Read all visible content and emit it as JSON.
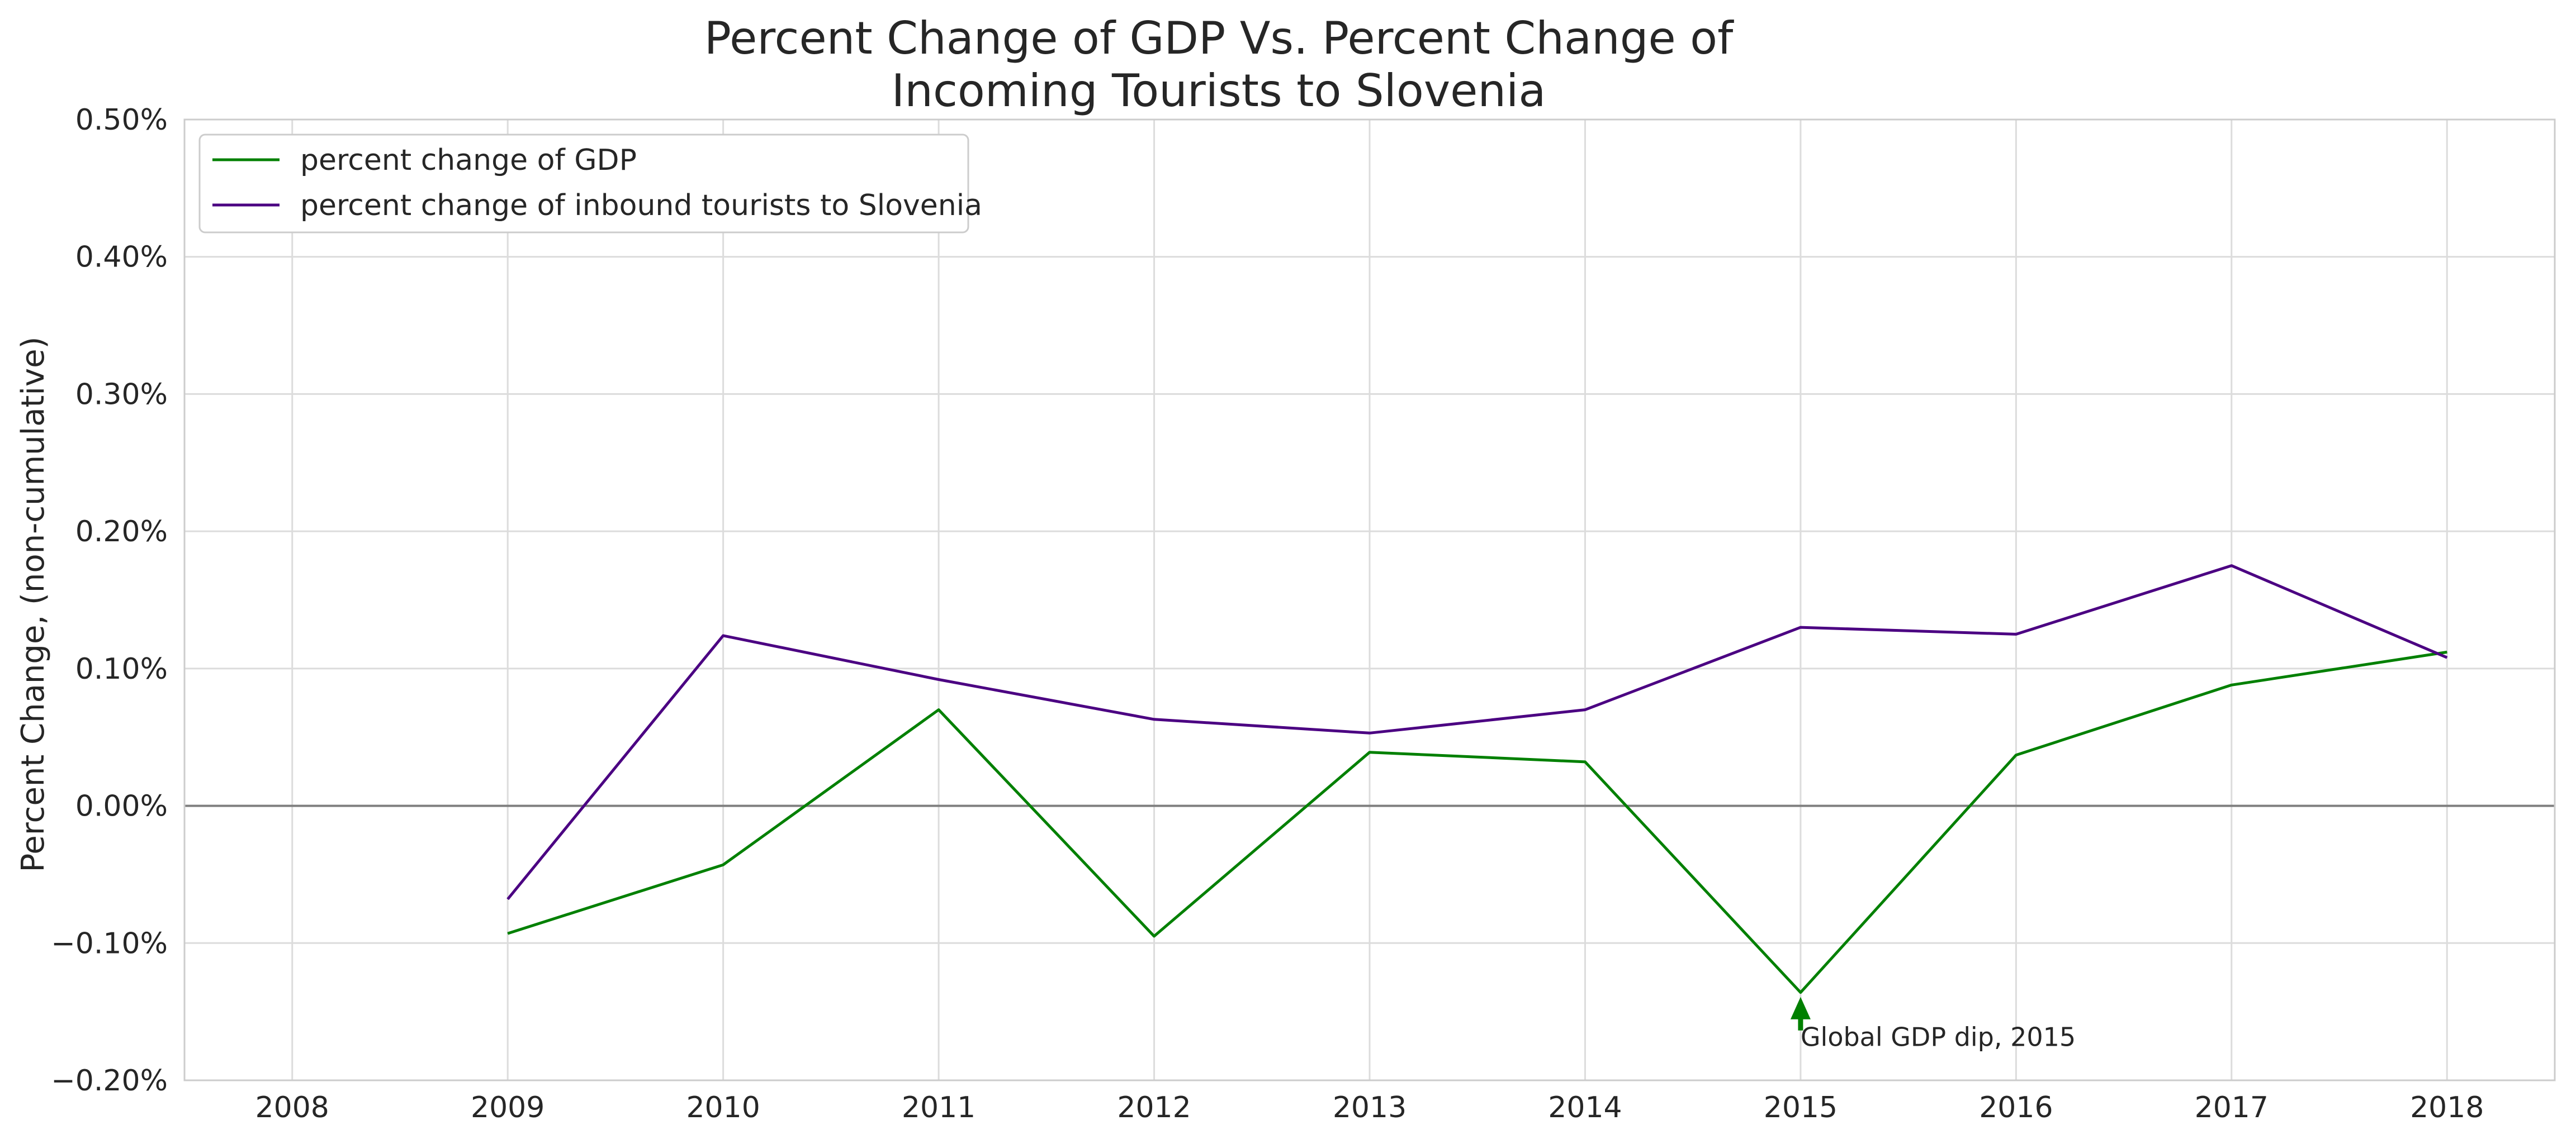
{
  "chart_data": {
    "type": "line",
    "title_lines": [
      "Percent Change of GDP Vs. Percent Change of",
      "Incoming Tourists to Slovenia"
    ],
    "xlabel": "",
    "ylabel": "Percent Change, (non-cumulative)",
    "x": [
      2008,
      2009,
      2010,
      2011,
      2012,
      2013,
      2014,
      2015,
      2016,
      2017,
      2018
    ],
    "xlim": [
      2007.5,
      2018.5
    ],
    "ylim": [
      -0.2,
      0.5
    ],
    "yticks": [
      -0.2,
      -0.1,
      0.0,
      0.1,
      0.2,
      0.3,
      0.4,
      0.5
    ],
    "ytick_labels": [
      "−0.20%",
      "−0.10%",
      "0.00%",
      "0.10%",
      "0.20%",
      "0.30%",
      "0.40%",
      "0.50%"
    ],
    "xtick_labels": [
      "2008",
      "2009",
      "2010",
      "2011",
      "2012",
      "2013",
      "2014",
      "2015",
      "2016",
      "2017",
      "2018"
    ],
    "grid": true,
    "zero_line": true,
    "legend_placement": "top-left",
    "series": [
      {
        "name": "percent change of GDP",
        "color": "#008000",
        "values": [
          null,
          -0.093,
          -0.043,
          0.07,
          -0.095,
          0.039,
          0.032,
          -0.136,
          0.037,
          0.088,
          0.112
        ]
      },
      {
        "name": "percent change of inbound tourists to Slovenia",
        "color": "#4b0082",
        "values": [
          null,
          -0.068,
          0.124,
          0.092,
          0.063,
          0.053,
          0.07,
          0.13,
          0.125,
          0.175,
          0.108
        ]
      }
    ],
    "annotations": [
      {
        "text": "Global GDP dip, 2015",
        "x": 2015,
        "y": -0.136,
        "text_y": -0.175,
        "arrow_color": "#008000"
      }
    ]
  }
}
